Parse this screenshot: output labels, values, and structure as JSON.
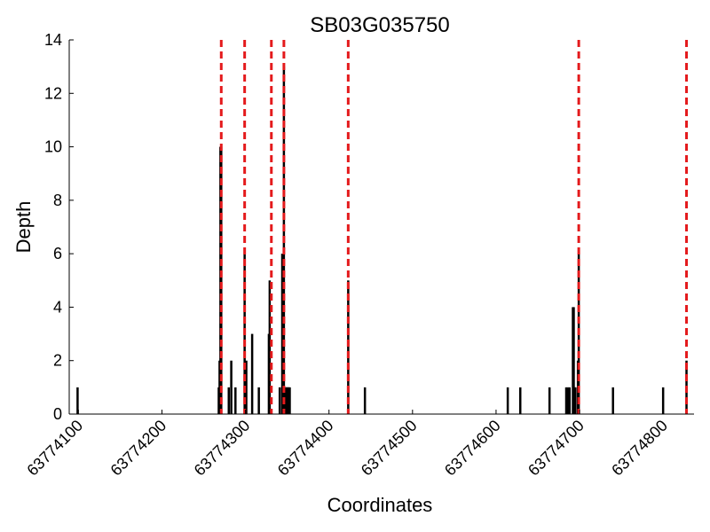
{
  "chart_data": {
    "type": "bar",
    "title": "SB03G035750",
    "x_label": "Coordinates",
    "y_label": "Depth",
    "color": "#000000",
    "x": [
      63774099,
      63774268,
      63774269,
      63774270,
      63774271,
      63774280,
      63774283,
      63774288,
      63774299,
      63774301,
      63774308,
      63774316,
      63774328,
      63774329,
      63774341,
      63774344,
      63774345,
      63774346,
      63774347,
      63774348,
      63774349,
      63774350,
      63774351,
      63774352,
      63774353,
      63774423,
      63774443,
      63774614,
      63774629,
      63774664,
      63774684,
      63774686,
      63774688,
      63774692,
      63774693,
      63774694,
      63774695,
      63774698,
      63774699,
      63774740,
      63774800,
      63774828
    ],
    "values": [
      1,
      1,
      2,
      10,
      10,
      1,
      2,
      1,
      6,
      2,
      3,
      1,
      3,
      5,
      1,
      6,
      2,
      13,
      1,
      1,
      1,
      1,
      1,
      1,
      1,
      5,
      1,
      1,
      1,
      1,
      1,
      1,
      1,
      4,
      4,
      1,
      1,
      2,
      6,
      1,
      1,
      2
    ],
    "vlines": [
      63774271,
      63774299,
      63774331,
      63774346,
      63774423,
      63774699,
      63774828
    ],
    "vline_color": "#e41a1c",
    "xlim": [
      63774089,
      63774837
    ],
    "ylim": [
      0,
      14
    ],
    "xticks": [
      63774100,
      63774200,
      63774300,
      63774400,
      63774500,
      63774600,
      63774700,
      63774800
    ],
    "yticks": [
      0,
      2,
      4,
      6,
      8,
      10,
      12,
      14
    ]
  }
}
